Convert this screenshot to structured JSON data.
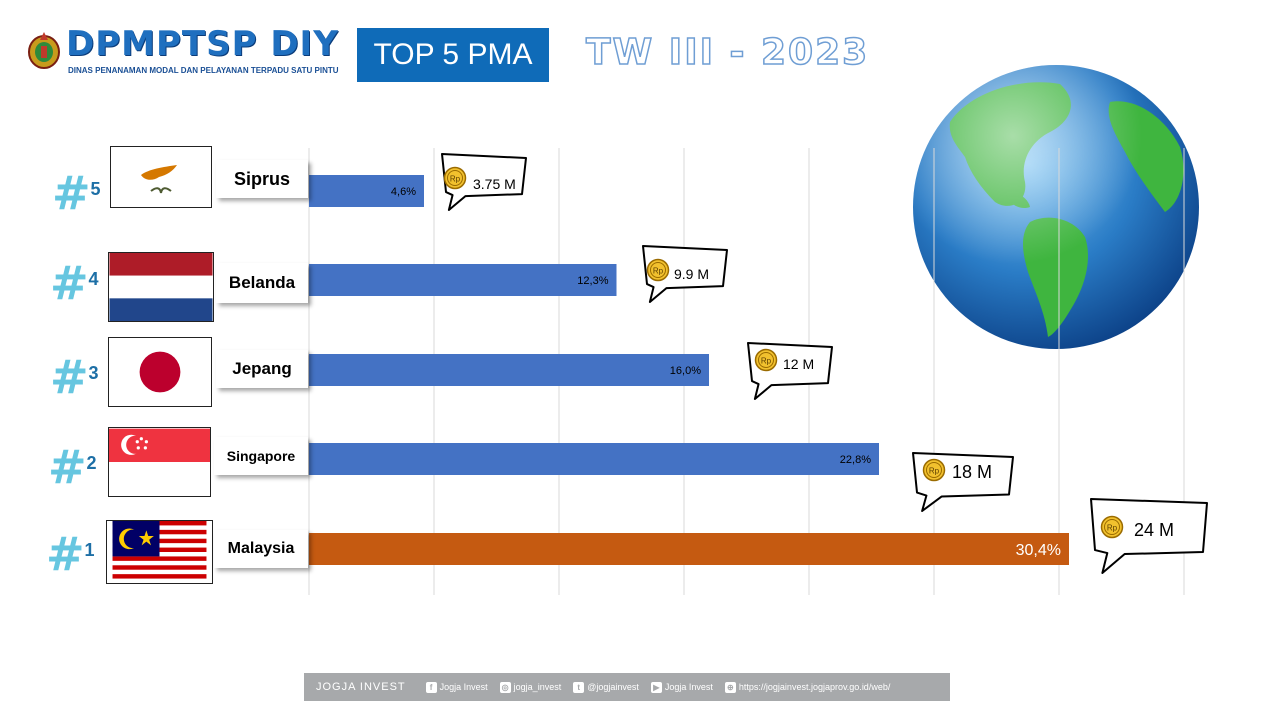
{
  "header": {
    "logo_title": "DPMPTSP DIY",
    "logo_subtitle": "DINAS PENANAMAN MODAL DAN PELAYANAN TERPADU SATU PINTU",
    "badge": "TOP 5 PMA",
    "period": "TW III - 2023"
  },
  "chart_data": {
    "type": "bar",
    "orientation": "horizontal",
    "categories": [
      "Siprus",
      "Belanda",
      "Jepang",
      "Singapore",
      "Malaysia"
    ],
    "ranks": [
      "5",
      "4",
      "3",
      "2",
      "1"
    ],
    "values": [
      4.6,
      12.3,
      16.0,
      22.8,
      30.4
    ],
    "value_labels": [
      "4,6%",
      "12,3%",
      "16,0%",
      "22,8%",
      "30,4%"
    ],
    "amount_labels": [
      "3.75 M",
      "9.9 M",
      "12 M",
      "18 M",
      "24 M"
    ],
    "currency_symbol": "Rp",
    "xlim": [
      0,
      35
    ],
    "grid": true,
    "colors": {
      "default_bar": "#4472c4",
      "highlight_bar": "#c55a11",
      "rank_hash": "#66c6e0",
      "rank_number": "#1d6fa6"
    }
  },
  "footer": {
    "brand": "JOGJA INVEST",
    "items": [
      {
        "icon": "facebook-icon",
        "glyph": "f",
        "text": "Jogja Invest"
      },
      {
        "icon": "instagram-icon",
        "glyph": "◎",
        "text": "jogja_invest"
      },
      {
        "icon": "twitter-icon",
        "glyph": "t",
        "text": "@jogjainvest"
      },
      {
        "icon": "youtube-icon",
        "glyph": "▶",
        "text": "Jogja Invest"
      },
      {
        "icon": "web-icon",
        "glyph": "⊕",
        "text": "https://jogjainvest.jogjaprov.go.id/web/"
      }
    ]
  }
}
